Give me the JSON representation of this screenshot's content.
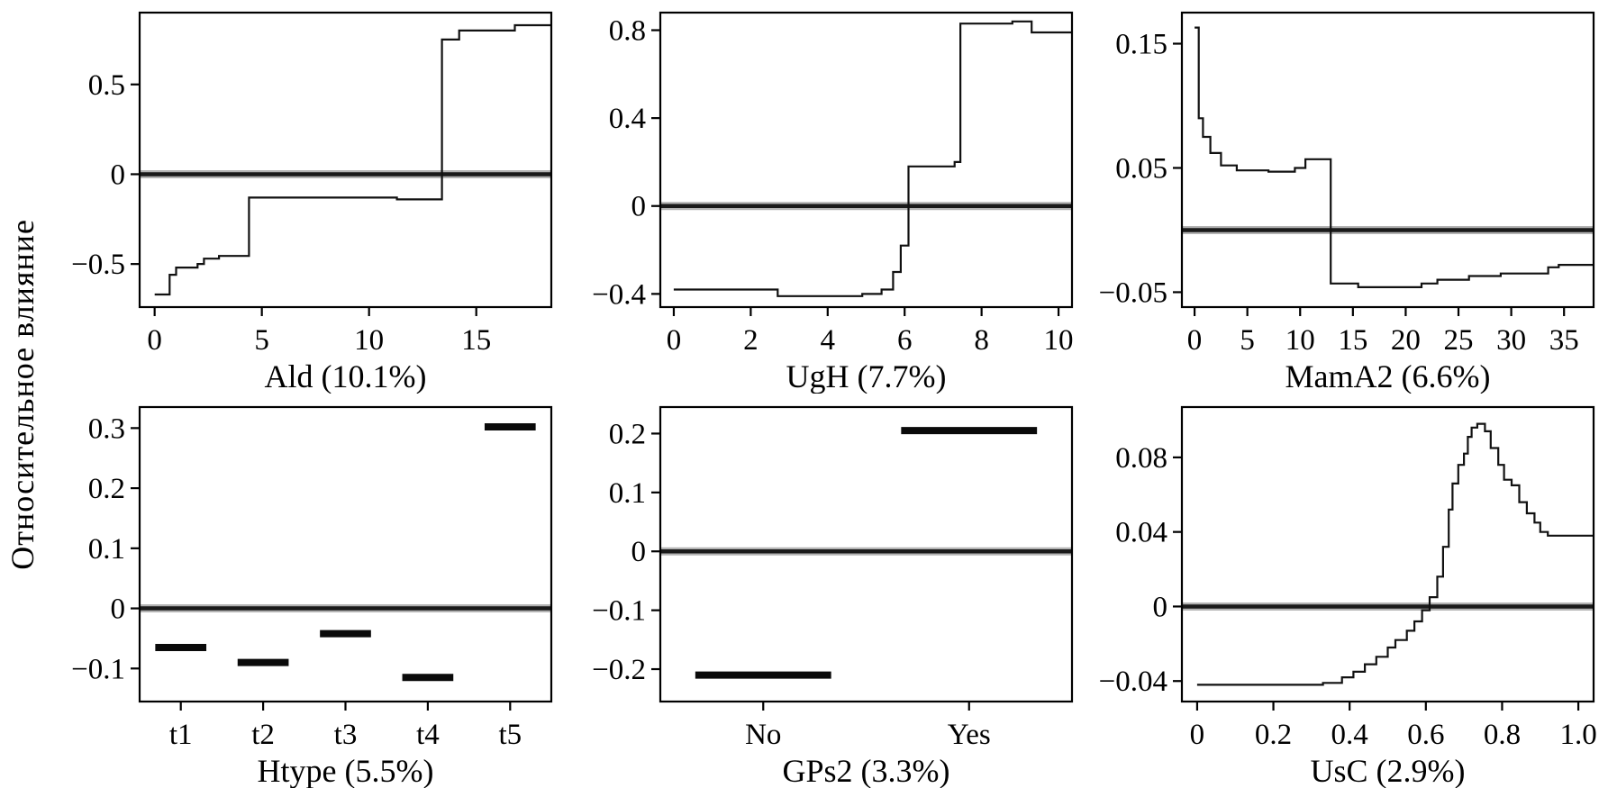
{
  "figure": {
    "ylabel": "Относительное влияние",
    "colors": {
      "frame": "#000000",
      "line": "#111111",
      "zero_line": "#1a1a1a",
      "zero_halo": "#b3b3b3",
      "segment": "#0a0a0a"
    }
  },
  "chart_data": [
    {
      "type": "line",
      "style": "step-after",
      "xlabel": "Ald (10.1%)",
      "xlim": [
        -0.7,
        18.5
      ],
      "ylim": [
        -0.74,
        0.9
      ],
      "xticks": [
        0,
        5,
        10,
        15
      ],
      "xtick_labels": [
        "0",
        "5",
        "10",
        "15"
      ],
      "yticks": [
        -0.5,
        0,
        0.5
      ],
      "ytick_labels": [
        "−0.5",
        "0",
        "0.5"
      ],
      "zero_line": true,
      "x": [
        0,
        0.7,
        1.0,
        2.0,
        2.3,
        3.0,
        4.4,
        11.3,
        13.4,
        14.2,
        16.8,
        18.5
      ],
      "y": [
        -0.67,
        -0.56,
        -0.52,
        -0.5,
        -0.47,
        -0.455,
        -0.13,
        -0.14,
        0.75,
        0.8,
        0.83,
        0.83
      ]
    },
    {
      "type": "line",
      "style": "step-after",
      "xlabel": "UgH (7.7%)",
      "xlim": [
        -0.35,
        10.35
      ],
      "ylim": [
        -0.46,
        0.88
      ],
      "xticks": [
        0,
        2,
        4,
        6,
        8,
        10
      ],
      "xtick_labels": [
        "0",
        "2",
        "4",
        "6",
        "8",
        "10"
      ],
      "yticks": [
        -0.4,
        0,
        0.4,
        0.8
      ],
      "ytick_labels": [
        "−0.4",
        "0",
        "0.4",
        "0.8"
      ],
      "zero_line": true,
      "x": [
        0,
        2.7,
        4.9,
        5.4,
        5.7,
        5.9,
        6.1,
        7.3,
        7.45,
        8.8,
        9.3,
        10.35
      ],
      "y": [
        -0.38,
        -0.41,
        -0.4,
        -0.38,
        -0.3,
        -0.18,
        0.18,
        0.2,
        0.83,
        0.84,
        0.79,
        0.79
      ]
    },
    {
      "type": "line",
      "style": "step-after",
      "xlabel": "MamA2 (6.6%)",
      "xlim": [
        -1.2,
        37.8
      ],
      "ylim": [
        -0.062,
        0.175
      ],
      "xticks": [
        0,
        5,
        10,
        15,
        20,
        25,
        30,
        35
      ],
      "xtick_labels": [
        "0",
        "5",
        "10",
        "15",
        "20",
        "25",
        "30",
        "35"
      ],
      "yticks": [
        -0.05,
        0.05,
        0.15
      ],
      "ytick_labels": [
        "−0.05",
        "0.05",
        "0.15"
      ],
      "zero_line": true,
      "x": [
        0,
        0.4,
        0.8,
        1.5,
        2.5,
        4,
        7,
        9.5,
        10.5,
        12.9,
        15.5,
        21.5,
        23,
        26,
        29,
        33.5,
        34.5,
        37.8
      ],
      "y": [
        0.163,
        0.09,
        0.075,
        0.062,
        0.052,
        0.048,
        0.047,
        0.05,
        0.057,
        -0.043,
        -0.046,
        -0.043,
        -0.04,
        -0.037,
        -0.035,
        -0.03,
        -0.028,
        -0.028
      ]
    },
    {
      "type": "categorical",
      "xlabel": "Htype (5.5%)",
      "categories": [
        "t1",
        "t2",
        "t3",
        "t4",
        "t5"
      ],
      "values": [
        -0.065,
        -0.09,
        -0.042,
        -0.115,
        0.302
      ],
      "seg_halfwidth": 0.31,
      "ylim": [
        -0.155,
        0.335
      ],
      "yticks": [
        -0.1,
        0,
        0.1,
        0.2,
        0.3
      ],
      "ytick_labels": [
        "−0.1",
        "0",
        "0.1",
        "0.2",
        "0.3"
      ],
      "zero_line": true
    },
    {
      "type": "categorical",
      "xlabel": "GPs2 (3.3%)",
      "categories": [
        "No",
        "Yes"
      ],
      "values": [
        -0.21,
        0.205
      ],
      "seg_halfwidth": 0.33,
      "ylim": [
        -0.255,
        0.245
      ],
      "yticks": [
        -0.2,
        -0.1,
        0,
        0.1,
        0.2
      ],
      "ytick_labels": [
        "−0.2",
        "−0.1",
        "0",
        "0.1",
        "0.2"
      ],
      "zero_line": true
    },
    {
      "type": "line",
      "style": "step-after",
      "xlabel": "UsC (2.9%)",
      "xlim": [
        -0.04,
        1.04
      ],
      "ylim": [
        -0.051,
        0.107
      ],
      "xticks": [
        0,
        0.2,
        0.4,
        0.6,
        0.8,
        1.0
      ],
      "xtick_labels": [
        "0",
        "0.2",
        "0.4",
        "0.6",
        "0.8",
        "1.0"
      ],
      "yticks": [
        -0.04,
        0,
        0.04,
        0.08
      ],
      "ytick_labels": [
        "−0.04",
        "0",
        "0.04",
        "0.08"
      ],
      "zero_line": true,
      "x": [
        0,
        0.33,
        0.38,
        0.41,
        0.44,
        0.47,
        0.5,
        0.52,
        0.55,
        0.57,
        0.59,
        0.61,
        0.63,
        0.645,
        0.66,
        0.67,
        0.685,
        0.7,
        0.71,
        0.72,
        0.735,
        0.755,
        0.77,
        0.79,
        0.805,
        0.825,
        0.845,
        0.865,
        0.885,
        0.9,
        0.92,
        1.04
      ],
      "y": [
        -0.042,
        -0.041,
        -0.038,
        -0.035,
        -0.031,
        -0.027,
        -0.022,
        -0.018,
        -0.013,
        -0.008,
        -0.002,
        0.005,
        0.016,
        0.032,
        0.052,
        0.066,
        0.076,
        0.082,
        0.091,
        0.096,
        0.098,
        0.094,
        0.085,
        0.076,
        0.068,
        0.065,
        0.056,
        0.05,
        0.045,
        0.04,
        0.038,
        0.038
      ]
    }
  ]
}
